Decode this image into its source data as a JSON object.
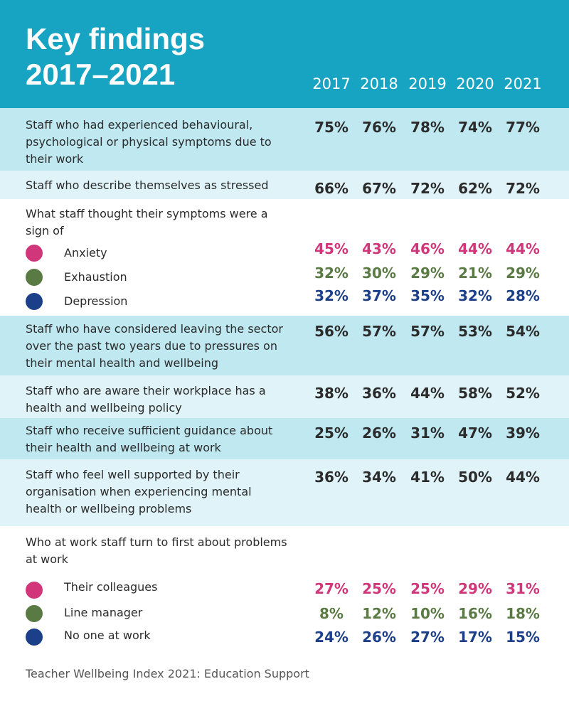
{
  "title_line1": "Key findings",
  "title_line2": "2017–2021",
  "years": [
    "2017",
    "2018",
    "2019",
    "2020",
    "2021"
  ],
  "colors": {
    "header": "#17a3c2",
    "band_dark": "#bfe8f1",
    "band_light": "#dff3f8",
    "pink": "#d1357a",
    "green": "#5a7a43",
    "blue": "#1c3f8a",
    "text": "#2b2b2b"
  },
  "chart_data": {
    "type": "table",
    "columns": [
      "2017",
      "2018",
      "2019",
      "2020",
      "2021"
    ],
    "rows": [
      {
        "label": "Staff who had experienced behavioural, psychological or physical symptoms due to their work",
        "values": [
          "75%",
          "76%",
          "78%",
          "74%",
          "77%"
        ]
      },
      {
        "label": "Staff who describe themselves as stressed",
        "values": [
          "66%",
          "67%",
          "72%",
          "62%",
          "72%"
        ]
      },
      {
        "label": "What staff thought their symptoms were a sign of",
        "items": [
          {
            "label": "Anxiety",
            "color": "#d1357a",
            "values": [
              "45%",
              "43%",
              "46%",
              "44%",
              "44%"
            ]
          },
          {
            "label": "Exhaustion",
            "color": "#5a7a43",
            "values": [
              "32%",
              "30%",
              "29%",
              "21%",
              "29%"
            ]
          },
          {
            "label": "Depression",
            "color": "#1c3f8a",
            "values": [
              "32%",
              "37%",
              "35%",
              "32%",
              "28%"
            ]
          }
        ]
      },
      {
        "label": "Staff who have considered leaving the sector over the past two years due to pressures on their mental health and wellbeing",
        "values": [
          "56%",
          "57%",
          "57%",
          "53%",
          "54%"
        ]
      },
      {
        "label": "Staff who are aware their workplace has a health and wellbeing policy",
        "values": [
          "38%",
          "36%",
          "44%",
          "58%",
          "52%"
        ]
      },
      {
        "label": "Staff who receive sufficient guidance about their health and wellbeing at work",
        "values": [
          "25%",
          "26%",
          "31%",
          "47%",
          "39%"
        ]
      },
      {
        "label": "Staff who feel well supported by their organisation when experiencing mental health or wellbeing problems",
        "values": [
          "36%",
          "34%",
          "41%",
          "50%",
          "44%"
        ]
      },
      {
        "label": "Who at work staff turn to first about problems at work",
        "items": [
          {
            "label": "Their colleagues",
            "color": "#d1357a",
            "values": [
              "27%",
              "25%",
              "25%",
              "29%",
              "31%"
            ]
          },
          {
            "label": "Line manager",
            "color": "#5a7a43",
            "values": [
              "8%",
              "12%",
              "10%",
              "16%",
              "18%"
            ]
          },
          {
            "label": "No one at work",
            "color": "#1c3f8a",
            "values": [
              "24%",
              "26%",
              "27%",
              "17%",
              "15%"
            ]
          }
        ]
      }
    ]
  },
  "footer": "Teacher Wellbeing Index 2021: Education Support"
}
